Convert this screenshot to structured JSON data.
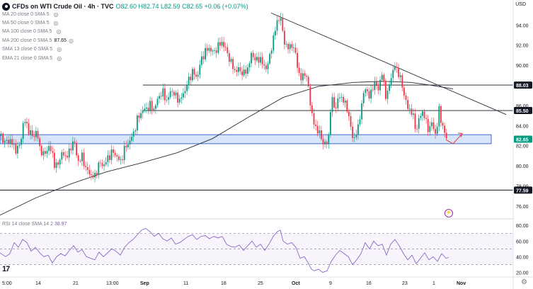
{
  "header": {
    "title": "CFDs on WTI Crude Oil · 4h · TVC",
    "ohlc": "O82.60 H82.74 L82.59 C82.65 +0.06 (+0.07%)",
    "currency": "USD"
  },
  "indicators": [
    {
      "label": "MA 20 close 0 SMA 5",
      "value": ""
    },
    {
      "label": "MA 50 close 0 SMA 5",
      "value": ""
    },
    {
      "label": "MA 100 close 0 SMA 5",
      "value": ""
    },
    {
      "label": "MA 200 close 0 SMA 5",
      "value": "87.65"
    },
    {
      "label": "SMA 13 close 0 SMA 5",
      "value": ""
    },
    {
      "label": "EMA 21 close 0 SMA 5",
      "value": ""
    }
  ],
  "rsi_legend": {
    "label": "RSI 14 close SMA 14 2",
    "value": "38.97"
  },
  "colors": {
    "up": "#089981",
    "down": "#f23645",
    "ma": "#2a2e39",
    "zone_fill": "#cfe0f7",
    "zone_edge": "#1848cc",
    "rsi": "#7e57c2",
    "price_tag": "#089981",
    "arrow": "#f23645"
  },
  "chart_data": [
    {
      "type": "candlestick",
      "title": "CFDs on WTI Crude Oil · 4h · TVC",
      "x_axis_labels": [
        "5:00",
        "14",
        "21",
        "13:00",
        "Sep",
        "11",
        "18",
        "25",
        "Oct",
        "9",
        "16",
        "23",
        "1",
        "Nov"
      ],
      "y_ticks": [
        76.0,
        78.0,
        80.0,
        82.0,
        84.0,
        86.0,
        88.0,
        90.0,
        92.0,
        94.0
      ],
      "ylim": [
        74.8,
        95.5
      ],
      "grid": false,
      "price_path": [
        [
          0,
          83.0
        ],
        [
          8,
          82.3
        ],
        [
          14,
          82.6
        ],
        [
          22,
          81.6
        ],
        [
          28,
          82.0
        ],
        [
          34,
          84.7
        ],
        [
          40,
          83.6
        ],
        [
          46,
          82.9
        ],
        [
          52,
          83.4
        ],
        [
          56,
          81.8
        ],
        [
          62,
          81.0
        ],
        [
          68,
          81.9
        ],
        [
          74,
          81.3
        ],
        [
          78,
          79.7
        ],
        [
          84,
          80.6
        ],
        [
          88,
          81.3
        ],
        [
          92,
          80.9
        ],
        [
          98,
          81.3
        ],
        [
          104,
          82.7
        ],
        [
          110,
          80.4
        ],
        [
          116,
          80.9
        ],
        [
          122,
          79.6
        ],
        [
          128,
          79.1
        ],
        [
          134,
          78.9
        ],
        [
          140,
          80.3
        ],
        [
          146,
          80.0
        ],
        [
          152,
          80.7
        ],
        [
          158,
          81.4
        ],
        [
          164,
          81.1
        ],
        [
          170,
          80.3
        ],
        [
          176,
          81.7
        ],
        [
          182,
          82.3
        ],
        [
          188,
          83.1
        ],
        [
          194,
          84.6
        ],
        [
          200,
          85.4
        ],
        [
          206,
          85.7
        ],
        [
          212,
          86.0
        ],
        [
          218,
          85.6
        ],
        [
          224,
          86.9
        ],
        [
          230,
          87.3
        ],
        [
          236,
          86.4
        ],
        [
          242,
          87.6
        ],
        [
          248,
          86.9
        ],
        [
          254,
          86.5
        ],
        [
          260,
          87.3
        ],
        [
          266,
          88.4
        ],
        [
          272,
          89.4
        ],
        [
          278,
          88.7
        ],
        [
          284,
          90.5
        ],
        [
          290,
          91.4
        ],
        [
          296,
          91.7
        ],
        [
          302,
          91.2
        ],
        [
          308,
          91.9
        ],
        [
          314,
          92.3
        ],
        [
          320,
          91.4
        ],
        [
          326,
          90.3
        ],
        [
          332,
          89.4
        ],
        [
          338,
          89.6
        ],
        [
          344,
          89.1
        ],
        [
          350,
          89.7
        ],
        [
          356,
          91.2
        ],
        [
          362,
          90.4
        ],
        [
          368,
          90.7
        ],
        [
          374,
          89.6
        ],
        [
          380,
          90.4
        ],
        [
          386,
          92.7
        ],
        [
          392,
          94.4
        ],
        [
          396,
          95.0
        ],
        [
          400,
          92.8
        ],
        [
          406,
          91.6
        ],
        [
          412,
          92.1
        ],
        [
          418,
          91.0
        ],
        [
          424,
          88.4
        ],
        [
          430,
          89.4
        ],
        [
          436,
          87.8
        ],
        [
          440,
          85.2
        ],
        [
          444,
          84.1
        ],
        [
          448,
          83.6
        ],
        [
          452,
          83.1
        ],
        [
          456,
          82.4
        ],
        [
          460,
          82.0
        ],
        [
          464,
          82.7
        ],
        [
          468,
          86.7
        ],
        [
          474,
          85.7
        ],
        [
          480,
          87.0
        ],
        [
          486,
          86.4
        ],
        [
          492,
          85.4
        ],
        [
          496,
          83.4
        ],
        [
          500,
          82.6
        ],
        [
          506,
          83.8
        ],
        [
          510,
          85.7
        ],
        [
          516,
          87.9
        ],
        [
          522,
          86.7
        ],
        [
          528,
          88.3
        ],
        [
          534,
          87.6
        ],
        [
          540,
          89.2
        ],
        [
          546,
          86.6
        ],
        [
          552,
          88.8
        ],
        [
          558,
          89.9
        ],
        [
          564,
          89.1
        ],
        [
          570,
          87.4
        ],
        [
          576,
          85.7
        ],
        [
          582,
          85.4
        ],
        [
          588,
          83.4
        ],
        [
          592,
          84.7
        ],
        [
          598,
          85.5
        ],
        [
          604,
          83.6
        ],
        [
          610,
          84.2
        ],
        [
          616,
          83.0
        ],
        [
          620,
          85.6
        ],
        [
          624,
          84.3
        ],
        [
          628,
          83.2
        ],
        [
          632,
          82.6
        ]
      ],
      "ma200_path": [
        [
          0,
          75.1
        ],
        [
          50,
          76.8
        ],
        [
          100,
          78.2
        ],
        [
          150,
          79.4
        ],
        [
          200,
          80.3
        ],
        [
          250,
          81.3
        ],
        [
          300,
          82.7
        ],
        [
          350,
          84.8
        ],
        [
          400,
          86.8
        ],
        [
          450,
          87.9
        ],
        [
          500,
          88.3
        ],
        [
          540,
          88.4
        ],
        [
          580,
          88.3
        ],
        [
          610,
          88.0
        ],
        [
          640,
          87.65
        ]
      ],
      "horizontal_levels": [
        88.03,
        85.5,
        77.59
      ],
      "support_zone": [
        82.2,
        83.1
      ],
      "trendline": {
        "from": [
          383,
          95.2
        ],
        "to": [
          715,
          85.1
        ]
      },
      "price_labels": [
        {
          "text": "88.03",
          "value": 88.03
        },
        {
          "text": "85.50",
          "value": 85.5
        },
        {
          "text": "82.65",
          "value": 82.65,
          "highlight": true
        },
        {
          "text": "77.59",
          "value": 77.59
        }
      ],
      "projection_arrow": {
        "from": [
          630,
          82.6
        ],
        "via": [
          640,
          82.2
        ],
        "to": [
          653,
          83.2
        ]
      }
    },
    {
      "type": "line",
      "title": "RSI 14 close SMA 14 2",
      "series": [
        {
          "name": "RSI",
          "last": 38.97
        }
      ],
      "y_ticks": [
        20.0,
        40.0,
        60.0,
        80.0
      ],
      "ylim": [
        15,
        82
      ],
      "reference_lines": [
        70,
        50,
        30
      ],
      "rsi_path": [
        [
          0,
          45
        ],
        [
          8,
          40
        ],
        [
          14,
          44
        ],
        [
          20,
          58
        ],
        [
          26,
          52
        ],
        [
          32,
          62
        ],
        [
          38,
          58
        ],
        [
          44,
          47
        ],
        [
          50,
          52
        ],
        [
          56,
          45
        ],
        [
          62,
          40
        ],
        [
          68,
          42
        ],
        [
          74,
          32
        ],
        [
          80,
          40
        ],
        [
          86,
          44
        ],
        [
          92,
          41
        ],
        [
          98,
          48
        ],
        [
          104,
          54
        ],
        [
          110,
          46
        ],
        [
          116,
          49
        ],
        [
          122,
          40
        ],
        [
          128,
          38
        ],
        [
          134,
          36
        ],
        [
          140,
          46
        ],
        [
          146,
          40
        ],
        [
          152,
          45
        ],
        [
          158,
          50
        ],
        [
          164,
          47
        ],
        [
          170,
          42
        ],
        [
          176,
          52
        ],
        [
          182,
          58
        ],
        [
          188,
          62
        ],
        [
          194,
          68
        ],
        [
          200,
          74
        ],
        [
          206,
          76
        ],
        [
          212,
          72
        ],
        [
          218,
          66
        ],
        [
          224,
          70
        ],
        [
          230,
          63
        ],
        [
          236,
          60
        ],
        [
          242,
          64
        ],
        [
          248,
          56
        ],
        [
          254,
          58
        ],
        [
          260,
          62
        ],
        [
          266,
          66
        ],
        [
          272,
          68
        ],
        [
          278,
          62
        ],
        [
          284,
          66
        ],
        [
          290,
          67
        ],
        [
          296,
          63
        ],
        [
          302,
          66
        ],
        [
          308,
          64
        ],
        [
          314,
          66
        ],
        [
          320,
          56
        ],
        [
          326,
          53
        ],
        [
          332,
          52
        ],
        [
          338,
          55
        ],
        [
          344,
          48
        ],
        [
          350,
          54
        ],
        [
          356,
          60
        ],
        [
          362,
          52
        ],
        [
          368,
          56
        ],
        [
          374,
          48
        ],
        [
          380,
          56
        ],
        [
          386,
          66
        ],
        [
          392,
          72
        ],
        [
          396,
          74
        ],
        [
          400,
          60
        ],
        [
          406,
          56
        ],
        [
          412,
          58
        ],
        [
          418,
          52
        ],
        [
          424,
          38
        ],
        [
          430,
          40
        ],
        [
          436,
          31
        ],
        [
          440,
          24
        ],
        [
          444,
          22
        ],
        [
          450,
          24
        ],
        [
          456,
          20
        ],
        [
          462,
          22
        ],
        [
          468,
          34
        ],
        [
          474,
          42
        ],
        [
          480,
          48
        ],
        [
          486,
          44
        ],
        [
          492,
          40
        ],
        [
          498,
          30
        ],
        [
          504,
          36
        ],
        [
          510,
          44
        ],
        [
          516,
          58
        ],
        [
          522,
          50
        ],
        [
          528,
          60
        ],
        [
          534,
          54
        ],
        [
          540,
          56
        ],
        [
          546,
          42
        ],
        [
          552,
          56
        ],
        [
          558,
          62
        ],
        [
          564,
          54
        ],
        [
          570,
          44
        ],
        [
          576,
          36
        ],
        [
          582,
          42
        ],
        [
          588,
          31
        ],
        [
          594,
          38
        ],
        [
          600,
          45
        ],
        [
          606,
          36
        ],
        [
          612,
          40
        ],
        [
          618,
          34
        ],
        [
          624,
          44
        ],
        [
          630,
          38
        ],
        [
          634,
          38.97
        ]
      ]
    }
  ]
}
